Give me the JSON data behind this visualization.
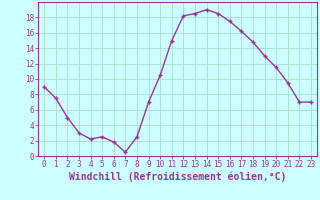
{
  "x": [
    0,
    1,
    2,
    3,
    4,
    5,
    6,
    7,
    8,
    9,
    10,
    11,
    12,
    13,
    14,
    15,
    16,
    17,
    18,
    19,
    20,
    21,
    22,
    23
  ],
  "y": [
    9,
    7.5,
    5,
    3,
    2.2,
    2.5,
    1.8,
    0.5,
    2.5,
    7,
    10.5,
    15,
    18.2,
    18.5,
    19,
    18.5,
    17.5,
    16.2,
    14.8,
    13,
    11.5,
    9.5,
    7,
    7
  ],
  "line_color": "#993399",
  "marker": "+",
  "marker_size": 3,
  "marker_ew": 1.0,
  "bg_color": "#ccffff",
  "grid_color": "#aaddcc",
  "xlabel": "Windchill (Refroidissement éolien,°C)",
  "xlabel_fontsize": 7,
  "xlim": [
    -0.5,
    23.5
  ],
  "ylim": [
    0,
    20
  ],
  "xticks": [
    0,
    1,
    2,
    3,
    4,
    5,
    6,
    7,
    8,
    9,
    10,
    11,
    12,
    13,
    14,
    15,
    16,
    17,
    18,
    19,
    20,
    21,
    22,
    23
  ],
  "yticks": [
    0,
    2,
    4,
    6,
    8,
    10,
    12,
    14,
    16,
    18
  ],
  "tick_fontsize": 5.5,
  "spine_color": "#993399",
  "line_width": 1.0
}
